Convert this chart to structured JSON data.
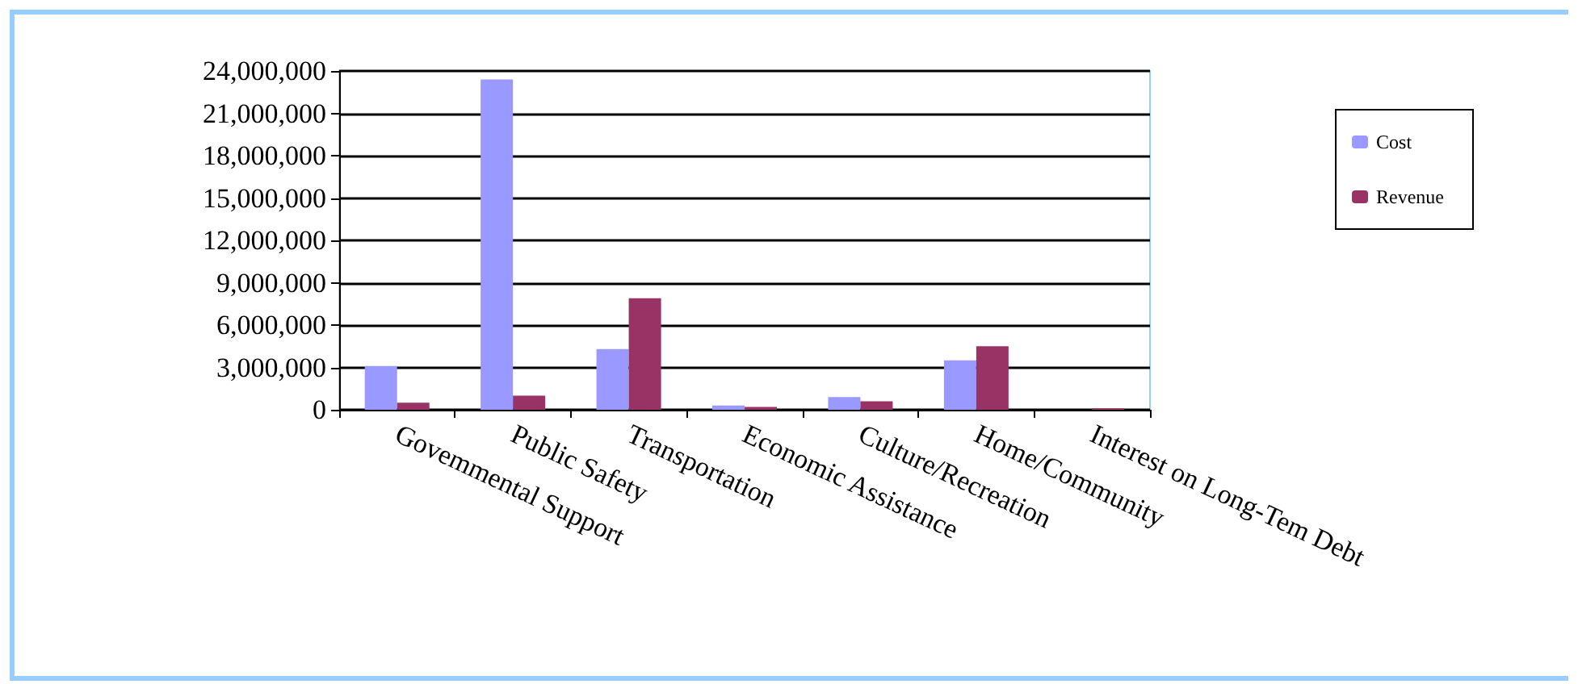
{
  "chart_data": {
    "type": "bar",
    "categories": [
      "Govemmental Support",
      "Public Safety",
      "Transportation",
      "Economic Assistance",
      "Culture/Recreation",
      "Home/Community",
      "Interest on Long-Tem Debt"
    ],
    "series": [
      {
        "name": "Cost",
        "color": "#9999ff",
        "values": [
          3100000,
          23400000,
          4300000,
          300000,
          900000,
          3500000,
          null
        ]
      },
      {
        "name": "Revenue",
        "color": "#993366",
        "values": [
          500000,
          1000000,
          7900000,
          200000,
          600000,
          4500000,
          100000
        ]
      }
    ],
    "ylim": [
      0,
      24000000
    ],
    "yticks": [
      0,
      {
        "value": 3000000,
        "label": "3,000,000"
      },
      {
        "value": 6000000,
        "label": "6,000,000"
      },
      {
        "value": 9000000,
        "label": "9,000,000"
      },
      {
        "value": 12000000,
        "label": "12,000,000"
      },
      {
        "value": 15000000,
        "label": "15,000,000"
      },
      {
        "value": 18000000,
        "label": "18,000,000"
      },
      {
        "value": 21000000,
        "label": "21,000,000"
      },
      {
        "value": 24000000,
        "label": "24,000,000"
      }
    ],
    "grid": "y",
    "legend": "right"
  }
}
